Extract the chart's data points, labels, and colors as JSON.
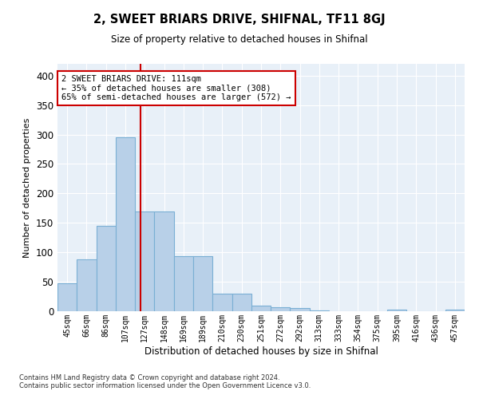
{
  "title": "2, SWEET BRIARS DRIVE, SHIFNAL, TF11 8GJ",
  "subtitle": "Size of property relative to detached houses in Shifnal",
  "xlabel": "Distribution of detached houses by size in Shifnal",
  "ylabel": "Number of detached properties",
  "bar_color": "#b8d0e8",
  "bar_edge_color": "#7aafd4",
  "bg_color": "#e8f0f8",
  "grid_color": "#ffffff",
  "categories": [
    "45sqm",
    "66sqm",
    "86sqm",
    "107sqm",
    "127sqm",
    "148sqm",
    "169sqm",
    "189sqm",
    "210sqm",
    "230sqm",
    "251sqm",
    "272sqm",
    "292sqm",
    "313sqm",
    "333sqm",
    "354sqm",
    "375sqm",
    "395sqm",
    "416sqm",
    "436sqm",
    "457sqm"
  ],
  "values": [
    47,
    88,
    145,
    295,
    170,
    170,
    93,
    93,
    30,
    30,
    10,
    7,
    5,
    2,
    0,
    0,
    0,
    3,
    0,
    0,
    3
  ],
  "ylim": [
    0,
    420
  ],
  "yticks": [
    0,
    50,
    100,
    150,
    200,
    250,
    300,
    350,
    400
  ],
  "property_line_x": 3.78,
  "property_line_color": "#cc0000",
  "annotation_line1": "2 SWEET BRIARS DRIVE: 111sqm",
  "annotation_line2": "← 35% of detached houses are smaller (308)",
  "annotation_line3": "65% of semi-detached houses are larger (572) →",
  "annotation_box_color": "#cc0000",
  "footer_line1": "Contains HM Land Registry data © Crown copyright and database right 2024.",
  "footer_line2": "Contains public sector information licensed under the Open Government Licence v3.0."
}
